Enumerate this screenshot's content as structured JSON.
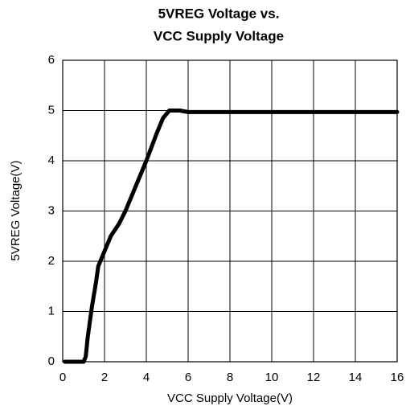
{
  "chart_data": {
    "type": "line",
    "title": [
      "5VREG Voltage vs.",
      "VCC Supply Voltage"
    ],
    "xlabel": "VCC Supply Voltage(V)",
    "ylabel": "5VREG Voltage(V)",
    "x": [
      0.1,
      1.0,
      1.1,
      1.2,
      1.4,
      1.6,
      1.7,
      2.0,
      2.3,
      2.7,
      3.0,
      3.5,
      4.0,
      4.5,
      4.8,
      5.1,
      5.6,
      6.0,
      16
    ],
    "series": [
      {
        "color": "#000000",
        "values": [
          0,
          0,
          0.1,
          0.5,
          1.1,
          1.6,
          1.9,
          2.2,
          2.5,
          2.75,
          3.0,
          3.5,
          4.0,
          4.55,
          4.85,
          5.0,
          5.0,
          4.97,
          4.97
        ]
      }
    ],
    "xlim": [
      0,
      16
    ],
    "xticks": [
      0,
      2,
      4,
      6,
      8,
      10,
      12,
      14,
      16
    ],
    "ylim": [
      0,
      6
    ],
    "yticks": [
      0,
      1,
      2,
      3,
      4,
      5,
      6
    ],
    "grid": true
  }
}
